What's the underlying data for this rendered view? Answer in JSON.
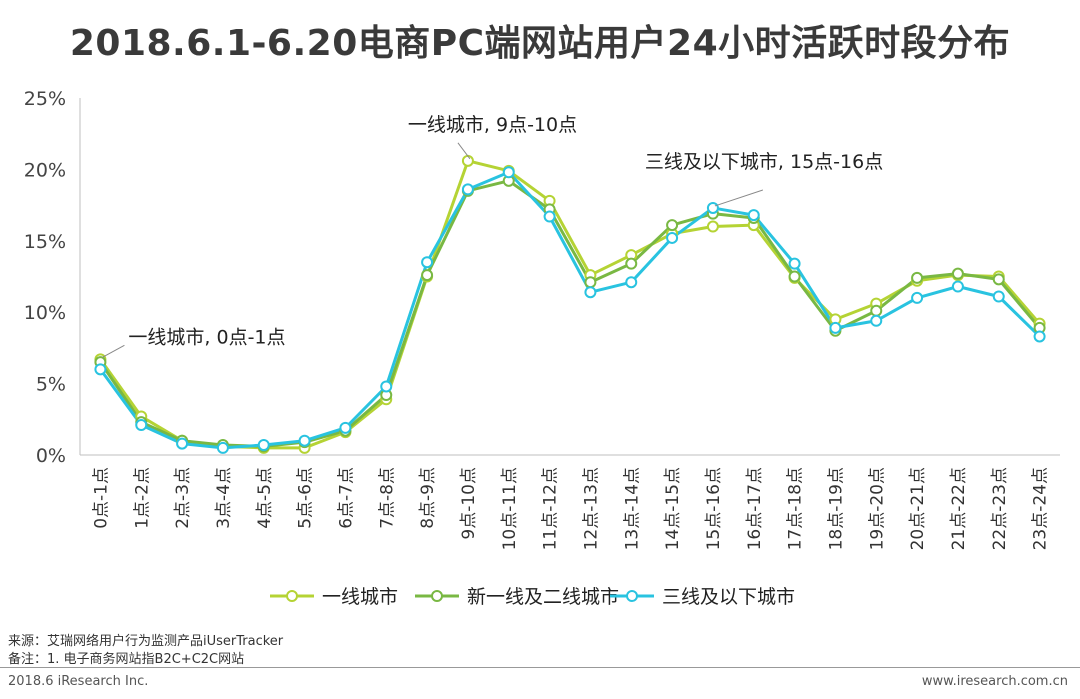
{
  "chart_data": {
    "type": "line",
    "title": "2018.6.1-6.20电商PC端网站用户24小时活跃时段分布",
    "categories": [
      "0点-1点",
      "1点-2点",
      "2点-3点",
      "3点-4点",
      "4点-5点",
      "5点-6点",
      "6点-7点",
      "7点-8点",
      "8点-9点",
      "9点-10点",
      "10点-11点",
      "11点-12点",
      "12点-13点",
      "13点-14点",
      "14点-15点",
      "15点-16点",
      "16点-17点",
      "17点-18点",
      "18点-19点",
      "19点-20点",
      "20点-21点",
      "21点-22点",
      "22点-23点",
      "23点-24点"
    ],
    "ylim": [
      0,
      25
    ],
    "yticks": [
      "0%",
      "5%",
      "10%",
      "15%",
      "20%",
      "25%"
    ],
    "series": [
      {
        "name": "一线城市",
        "color": "#b5d334",
        "values": [
          6.7,
          2.7,
          1.0,
          0.6,
          0.5,
          0.5,
          1.6,
          3.9,
          12.5,
          20.6,
          19.9,
          17.8,
          12.6,
          14.0,
          15.5,
          16.0,
          16.1,
          12.4,
          9.5,
          10.6,
          12.2,
          12.6,
          12.5,
          9.2
        ]
      },
      {
        "name": "新一线及二线城市",
        "color": "#79b843",
        "values": [
          6.5,
          2.3,
          1.0,
          0.7,
          0.6,
          0.9,
          1.7,
          4.2,
          12.6,
          18.5,
          19.2,
          17.2,
          12.1,
          13.4,
          16.1,
          16.9,
          16.6,
          12.5,
          8.7,
          10.1,
          12.4,
          12.7,
          12.3,
          8.9
        ]
      },
      {
        "name": "三线及以下城市",
        "color": "#29c3e0",
        "values": [
          6.0,
          2.1,
          0.8,
          0.5,
          0.7,
          1.0,
          1.9,
          4.8,
          13.5,
          18.6,
          19.8,
          16.7,
          11.4,
          12.1,
          15.2,
          17.3,
          16.8,
          13.4,
          8.9,
          9.4,
          11.0,
          11.8,
          11.1,
          8.3
        ]
      }
    ],
    "annotations": [
      {
        "text": "一线城市, 0点-1点",
        "series": 0,
        "index": 0
      },
      {
        "text": "一线城市, 9点-10点",
        "series": 0,
        "index": 9
      },
      {
        "text": "三线及以下城市, 15点-16点",
        "series": 2,
        "index": 15
      }
    ],
    "legend_position": "bottom",
    "grid": false
  },
  "footnotes": {
    "source": "来源：艾瑞网络用户行为监测产品iUserTracker",
    "note": "备注：1. 电子商务网站指B2C+C2C网站"
  },
  "footer": {
    "left": "2018.6 iResearch Inc.",
    "right": "www.iresearch.com.cn"
  }
}
